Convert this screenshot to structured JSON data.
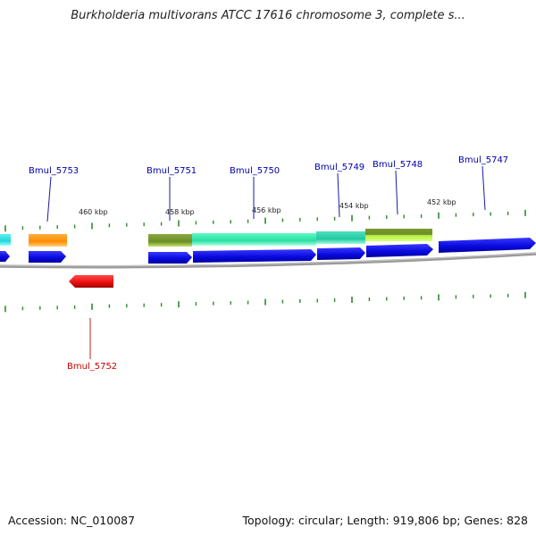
{
  "title": "Burkholderia multivorans ATCC 17616 chromosome 3, complete s...",
  "footer": {
    "accession": "Accession: NC_010087",
    "stats": "Topology: circular; Length: 919,806 bp; Genes: 828"
  },
  "colors": {
    "backbone": "#888888",
    "tick": "#2e8b2e",
    "cds_forward": "#1010e8",
    "cds_reverse": "#ee1111",
    "label_forward": "#0000aa",
    "label_reverse": "#cc0000"
  },
  "scale_labels": [
    "460 kbp",
    "458 kbp",
    "456 kbp",
    "454 kbp",
    "452 kbp"
  ],
  "gene_labels": [
    {
      "name": "Bmul_5753",
      "strand": "forward"
    },
    {
      "name": "Bmul_5751",
      "strand": "forward"
    },
    {
      "name": "Bmul_5750",
      "strand": "forward"
    },
    {
      "name": "Bmul_5749",
      "strand": "forward"
    },
    {
      "name": "Bmul_5748",
      "strand": "forward"
    },
    {
      "name": "Bmul_5747",
      "strand": "forward"
    },
    {
      "name": "Bmul_5752",
      "strand": "reverse"
    }
  ],
  "feature_colors": {
    "cyan": "#20d8d8",
    "orange": "#ff8c00",
    "olive": "#6b8e23",
    "aquamarine": "#2ee8a8",
    "teal": "#20c8a0",
    "lime": "#adff2f"
  }
}
